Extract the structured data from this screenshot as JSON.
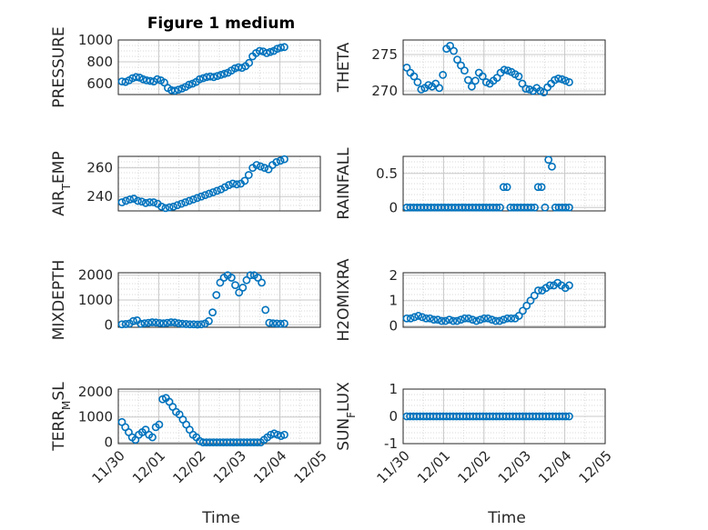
{
  "figure": {
    "title": "Figure 1 medium",
    "xlabel": "Time"
  },
  "x_ticks": [
    "11/30",
    "12/01",
    "12/02",
    "12/03",
    "12/04",
    "12/05"
  ],
  "colors": {
    "marker": "#0072BD",
    "axis": "#262626",
    "grid": "#d9d9d9"
  },
  "chart_data": [
    {
      "type": "scatter",
      "ylabel": "PRESSURE",
      "yticks": [
        "600",
        "800",
        "1000"
      ],
      "ylim": [
        500,
        1000
      ],
      "series": [
        {
          "values": [
            620,
            615,
            630,
            650,
            660,
            655,
            640,
            630,
            625,
            620,
            640,
            630,
            610,
            560,
            540,
            535,
            545,
            555,
            570,
            590,
            600,
            615,
            640,
            650,
            660,
            665,
            660,
            670,
            680,
            690,
            700,
            720,
            740,
            750,
            745,
            760,
            790,
            850,
            880,
            900,
            895,
            880,
            890,
            900,
            920,
            930,
            935
          ]
        }
      ]
    },
    {
      "type": "scatter",
      "ylabel": "THETA",
      "yticks": [
        "270",
        "275"
      ],
      "ylim": [
        269.5,
        277
      ],
      "series": [
        {
          "values": [
            273.2,
            272.5,
            272.0,
            271.2,
            270.2,
            270.4,
            270.8,
            270.6,
            271.0,
            270.4,
            272.2,
            275.8,
            276.2,
            275.5,
            274.3,
            273.5,
            272.8,
            271.5,
            270.6,
            271.4,
            272.5,
            272.0,
            271.2,
            271.0,
            271.4,
            271.8,
            272.5,
            272.9,
            272.8,
            272.6,
            272.3,
            272.0,
            271.0,
            270.3,
            270.2,
            270.0,
            270.4,
            270.0,
            269.8,
            270.5,
            271.0,
            271.5,
            271.7,
            271.6,
            271.4,
            271.2
          ]
        }
      ]
    },
    {
      "type": "scatter",
      "ylabel": "AIR_TEMP",
      "yticks": [
        "240",
        "260"
      ],
      "ylim": [
        230,
        268
      ],
      "series": [
        {
          "values": [
            236,
            237,
            238,
            238.5,
            237,
            236.5,
            235.5,
            236,
            236,
            235,
            233,
            232,
            232.5,
            233,
            234,
            235,
            236,
            237,
            238,
            239,
            240,
            241,
            242,
            243,
            244,
            245,
            246.5,
            248,
            249,
            248.5,
            249,
            251,
            255,
            260,
            262,
            261,
            260,
            259,
            262,
            264,
            265,
            266
          ]
        }
      ]
    },
    {
      "type": "scatter",
      "ylabel": "RAINFALL",
      "yticks": [
        "0",
        "0.5"
      ],
      "ylim": [
        -0.05,
        0.75
      ],
      "series": [
        {
          "values": [
            0,
            0,
            0,
            0,
            0,
            0,
            0,
            0,
            0,
            0,
            0,
            0,
            0,
            0,
            0,
            0,
            0,
            0,
            0,
            0,
            0,
            0,
            0,
            0,
            0,
            0,
            0,
            0,
            0.3,
            0.3,
            0,
            0,
            0,
            0,
            0,
            0,
            0,
            0,
            0.3,
            0.3,
            0,
            0.7,
            0.6,
            0,
            0,
            0,
            0,
            0
          ]
        }
      ]
    },
    {
      "type": "scatter",
      "ylabel": "MIXDEPTH",
      "yticks": [
        "0",
        "1000",
        "2000"
      ],
      "ylim": [
        -100,
        2100
      ],
      "series": [
        {
          "values": [
            20,
            30,
            50,
            150,
            180,
            40,
            60,
            80,
            100,
            90,
            70,
            60,
            80,
            100,
            90,
            60,
            40,
            30,
            20,
            20,
            10,
            20,
            50,
            150,
            500,
            1200,
            1700,
            1900,
            2000,
            1900,
            1600,
            1300,
            1500,
            1800,
            2000,
            2000,
            1900,
            1700,
            600,
            80,
            60,
            50,
            40,
            50
          ]
        }
      ]
    },
    {
      "type": "scatter",
      "ylabel": "H2OMIXRA",
      "yticks": [
        "0",
        "1",
        "2"
      ],
      "ylim": [
        -0.05,
        2.1
      ],
      "series": [
        {
          "values": [
            0.3,
            0.3,
            0.35,
            0.4,
            0.35,
            0.3,
            0.3,
            0.25,
            0.25,
            0.2,
            0.2,
            0.25,
            0.2,
            0.2,
            0.25,
            0.3,
            0.3,
            0.25,
            0.2,
            0.25,
            0.3,
            0.3,
            0.25,
            0.2,
            0.2,
            0.25,
            0.3,
            0.3,
            0.3,
            0.4,
            0.6,
            0.8,
            1.0,
            1.2,
            1.4,
            1.4,
            1.5,
            1.6,
            1.6,
            1.7,
            1.6,
            1.5,
            1.6
          ]
        }
      ]
    },
    {
      "type": "scatter",
      "ylabel": "TERR_MSL",
      "yticks": [
        "0",
        "1000",
        "2000"
      ],
      "ylim": [
        -50,
        2100
      ],
      "series": [
        {
          "values": [
            800,
            600,
            400,
            200,
            100,
            300,
            400,
            500,
            300,
            200,
            600,
            700,
            1700,
            1750,
            1600,
            1400,
            1200,
            1100,
            900,
            700,
            500,
            300,
            200,
            50,
            0,
            0,
            0,
            0,
            0,
            0,
            0,
            0,
            0,
            0,
            0,
            0,
            0,
            0,
            0,
            0,
            0,
            0,
            100,
            200,
            300,
            350,
            300,
            250,
            300
          ]
        }
      ]
    },
    {
      "type": "scatter",
      "ylabel": "SUN_FLUX",
      "yticks": [
        "-1",
        "0",
        "1"
      ],
      "ylim": [
        -1,
        1
      ],
      "series": [
        {
          "values": [
            0,
            0,
            0,
            0,
            0,
            0,
            0,
            0,
            0,
            0,
            0,
            0,
            0,
            0,
            0,
            0,
            0,
            0,
            0,
            0,
            0,
            0,
            0,
            0,
            0,
            0,
            0,
            0,
            0,
            0,
            0,
            0,
            0,
            0,
            0,
            0,
            0,
            0,
            0,
            0,
            0,
            0,
            0,
            0,
            0,
            0,
            0,
            0,
            0,
            0
          ]
        }
      ]
    }
  ]
}
